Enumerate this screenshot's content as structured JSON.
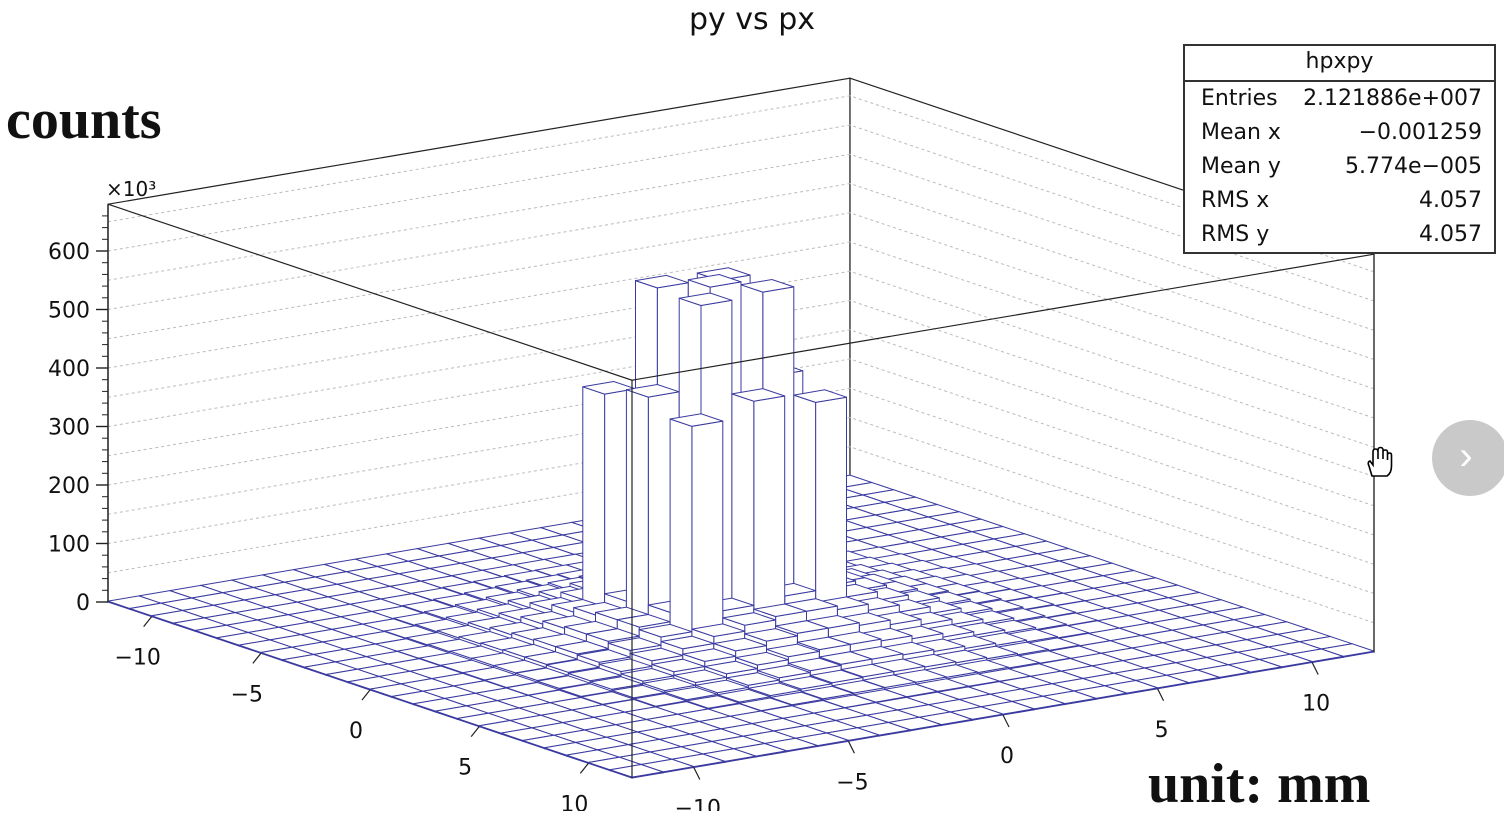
{
  "chart_data": {
    "type": "lego3d",
    "title": "py vs px",
    "zlabel": "counts",
    "unit_label": "unit: mm",
    "z_multiplier": "×10³",
    "z_ticks": [
      "0",
      "100",
      "200",
      "300",
      "400",
      "500",
      "600"
    ],
    "z_tick_values": [
      0,
      100,
      200,
      300,
      400,
      500,
      600
    ],
    "zlim": [
      0,
      680
    ],
    "x_ticks": [
      "−10",
      "−5",
      "0",
      "5",
      "10"
    ],
    "y_ticks": [
      "−10",
      "−5",
      "0",
      "5",
      "10"
    ],
    "x_tick_values": [
      -10,
      -5,
      0,
      5,
      10
    ],
    "y_tick_values": [
      -10,
      -5,
      0,
      5,
      10
    ],
    "xlim": [
      -12,
      12
    ],
    "ylim": [
      -12,
      12
    ],
    "bins": 24,
    "bar_color": "#3a3aa0",
    "central_bars": [
      {
        "x": -1.5,
        "y": -1.5,
        "z": 585
      },
      {
        "x": 0.5,
        "y": -1.5,
        "z": 580
      },
      {
        "x": -1.5,
        "y": 0.5,
        "z": 580
      },
      {
        "x": 0.5,
        "y": 0.5,
        "z": 585
      },
      {
        "x": -0.5,
        "y": -0.5,
        "z": 590
      },
      {
        "x": -2.5,
        "y": -0.5,
        "z": 420
      },
      {
        "x": 1.5,
        "y": -0.5,
        "z": 420
      },
      {
        "x": -0.5,
        "y": -2.5,
        "z": 420
      },
      {
        "x": -0.5,
        "y": 1.5,
        "z": 420
      },
      {
        "x": -2.5,
        "y": -2.5,
        "z": 400
      },
      {
        "x": 1.5,
        "y": 1.5,
        "z": 400
      },
      {
        "x": -2.5,
        "y": 1.5,
        "z": 395
      },
      {
        "x": 1.5,
        "y": -2.5,
        "z": 395
      }
    ]
  },
  "stats_box": {
    "name": "hpxpy",
    "rows": [
      {
        "label": "Entries",
        "value": "2.121886e+007"
      },
      {
        "label": "Mean x",
        "value": "−0.001259"
      },
      {
        "label": "Mean y",
        "value": "5.774e−005"
      },
      {
        "label": "RMS x",
        "value": "4.057"
      },
      {
        "label": "RMS y",
        "value": "4.057"
      }
    ]
  },
  "nav": {
    "next_glyph": "›"
  }
}
